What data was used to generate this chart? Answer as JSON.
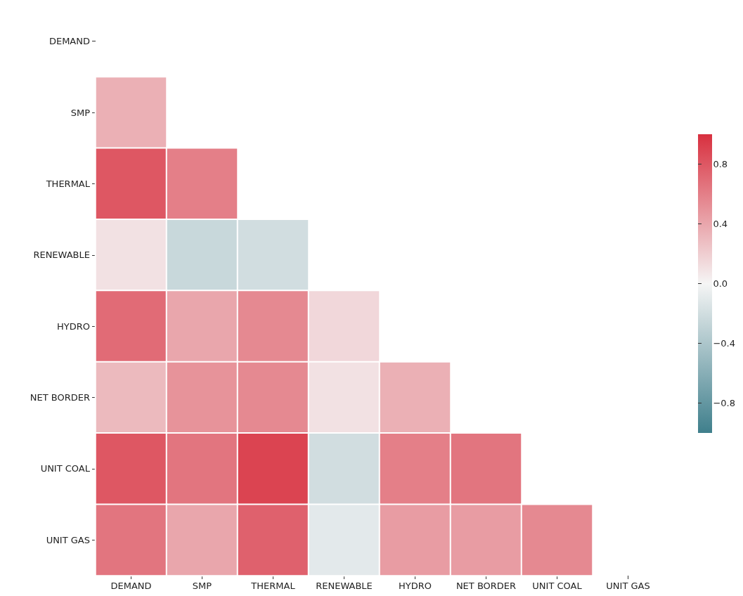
{
  "chart_data": {
    "type": "heatmap",
    "categories": [
      "DEMAND",
      "SMP",
      "THERMAL",
      "RENEWABLE",
      "HYDRO",
      "NET BORDER",
      "UNIT COAL",
      "UNIT GAS"
    ],
    "y_categories": [
      "DEMAND",
      "SMP",
      "THERMAL",
      "RENEWABLE",
      "HYDRO",
      "NET BORDER",
      "UNIT COAL",
      "UNIT GAS"
    ],
    "cells": [
      [
        null,
        null,
        null,
        null,
        null,
        null,
        null,
        null
      ],
      [
        0.35,
        null,
        null,
        null,
        null,
        null,
        null,
        null
      ],
      [
        0.8,
        0.6,
        null,
        null,
        null,
        null,
        null,
        null
      ],
      [
        0.1,
        -0.25,
        -0.2,
        null,
        null,
        null,
        null,
        null
      ],
      [
        0.7,
        0.4,
        0.55,
        0.15,
        null,
        null,
        null,
        null
      ],
      [
        0.3,
        0.5,
        0.55,
        0.1,
        0.35,
        null,
        null,
        null
      ],
      [
        0.8,
        0.65,
        0.9,
        -0.2,
        0.6,
        0.65,
        null,
        null
      ],
      [
        0.65,
        0.4,
        0.75,
        -0.1,
        0.45,
        0.45,
        0.55,
        null
      ]
    ],
    "clim": [
      -1,
      1
    ],
    "cticks": [
      -0.8,
      -0.4,
      {
        "value": 0,
        "label": "0.0"
      },
      0.4,
      0.8
    ]
  }
}
